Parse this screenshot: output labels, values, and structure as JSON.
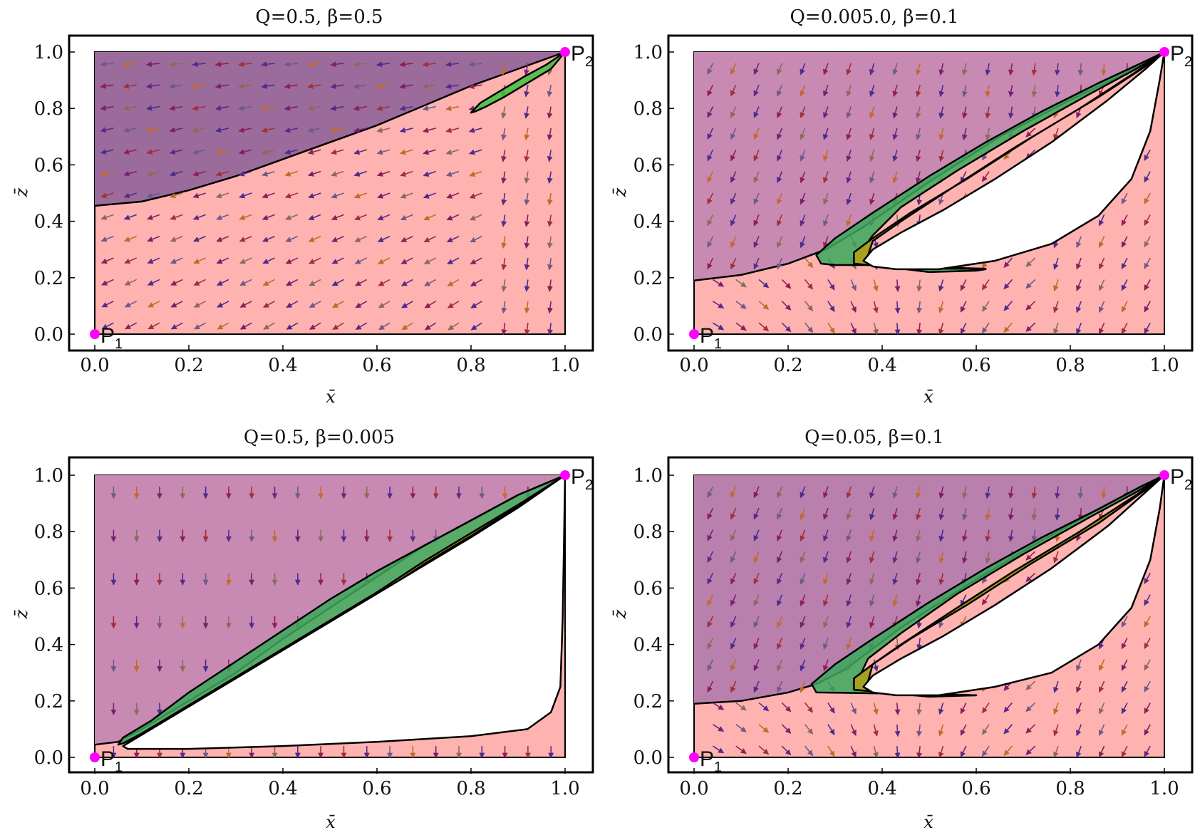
{
  "chart_data": [
    {
      "type": "streamplot",
      "title": "Q=0.5, β=0.5",
      "xlabel": "x̄",
      "ylabel": "z̄",
      "xlim": [
        0,
        1
      ],
      "ylim": [
        0,
        1
      ],
      "xticks": [
        "0.0",
        "0.2",
        "0.4",
        "0.6",
        "0.8",
        "1.0"
      ],
      "yticks": [
        "0.0",
        "0.2",
        "0.4",
        "0.6",
        "0.8",
        "1.0"
      ],
      "points": [
        {
          "label": "P",
          "sub": "1",
          "x": 0,
          "y": 0
        },
        {
          "label": "P",
          "sub": "2",
          "x": 1,
          "y": 1
        }
      ],
      "boundary": [
        [
          0,
          0.455
        ],
        [
          0.1,
          0.47
        ],
        [
          0.2,
          0.51
        ],
        [
          0.3,
          0.56
        ],
        [
          0.4,
          0.62
        ],
        [
          0.5,
          0.68
        ],
        [
          0.6,
          0.74
        ],
        [
          0.7,
          0.81
        ],
        [
          0.8,
          0.88
        ],
        [
          0.9,
          0.94
        ],
        [
          1.0,
          1.0
        ]
      ],
      "regions": {
        "white": [],
        "yellow": [],
        "green": [
          [
            0.8,
            0.785
          ],
          [
            0.82,
            0.82
          ],
          [
            0.86,
            0.86
          ],
          [
            0.91,
            0.91
          ],
          [
            0.96,
            0.955
          ],
          [
            1.0,
            1.0
          ],
          [
            0.97,
            0.94
          ],
          [
            0.92,
            0.89
          ],
          [
            0.87,
            0.84
          ],
          [
            0.83,
            0.805
          ],
          [
            0.81,
            0.79
          ]
        ]
      },
      "flow": "radial",
      "flow_arrows": "leftward",
      "colors": {
        "upper": "#9b6b9b",
        "lower": "#ffb3b0",
        "green": "#3ec23e",
        "point": "#ff00ff"
      }
    },
    {
      "type": "streamplot",
      "title": "Q=0.005.0, β=0.1",
      "xlabel": "x̄",
      "ylabel": "z̄",
      "xlim": [
        0,
        1
      ],
      "ylim": [
        0,
        1
      ],
      "xticks": [
        "0.0",
        "0.2",
        "0.4",
        "0.6",
        "0.8",
        "1.0"
      ],
      "yticks": [
        "0.0",
        "0.2",
        "0.4",
        "0.6",
        "0.8",
        "1.0"
      ],
      "points": [
        {
          "label": "P",
          "sub": "1",
          "x": 0,
          "y": 0
        },
        {
          "label": "P",
          "sub": "2",
          "x": 1,
          "y": 1
        }
      ],
      "boundary": [
        [
          0,
          0.19
        ],
        [
          0.1,
          0.21
        ],
        [
          0.2,
          0.25
        ],
        [
          0.28,
          0.3
        ],
        [
          0.36,
          0.38
        ],
        [
          0.5,
          0.54
        ],
        [
          0.65,
          0.7
        ],
        [
          0.8,
          0.83
        ],
        [
          0.9,
          0.91
        ],
        [
          1.0,
          1.0
        ]
      ],
      "regions": {
        "green": [
          [
            0.27,
            0.25
          ],
          [
            0.26,
            0.28
          ],
          [
            0.3,
            0.34
          ],
          [
            0.38,
            0.43
          ],
          [
            0.5,
            0.56
          ],
          [
            0.62,
            0.68
          ],
          [
            0.74,
            0.79
          ],
          [
            0.86,
            0.89
          ],
          [
            0.95,
            0.96
          ],
          [
            1.0,
            1.0
          ],
          [
            0.94,
            0.94
          ],
          [
            0.84,
            0.85
          ],
          [
            0.7,
            0.72
          ],
          [
            0.56,
            0.58
          ],
          [
            0.44,
            0.45
          ],
          [
            0.38,
            0.35
          ],
          [
            0.35,
            0.28
          ],
          [
            0.4,
            0.24
          ],
          [
            0.5,
            0.22
          ],
          [
            0.6,
            0.225
          ],
          [
            0.62,
            0.23
          ],
          [
            0.5,
            0.235
          ],
          [
            0.4,
            0.245
          ],
          [
            0.3,
            0.245
          ]
        ],
        "yellow": [
          [
            0.34,
            0.25
          ],
          [
            0.34,
            0.29
          ],
          [
            0.38,
            0.34
          ],
          [
            0.46,
            0.43
          ],
          [
            0.58,
            0.55
          ],
          [
            0.72,
            0.7
          ],
          [
            0.86,
            0.84
          ],
          [
            0.97,
            0.96
          ],
          [
            1.0,
            1.0
          ],
          [
            0.94,
            0.93
          ],
          [
            0.82,
            0.8
          ],
          [
            0.68,
            0.66
          ],
          [
            0.55,
            0.52
          ],
          [
            0.44,
            0.4
          ],
          [
            0.38,
            0.33
          ],
          [
            0.37,
            0.28
          ],
          [
            0.42,
            0.245
          ],
          [
            0.52,
            0.232
          ],
          [
            0.62,
            0.232
          ],
          [
            0.5,
            0.237
          ],
          [
            0.4,
            0.24
          ]
        ],
        "white": [
          [
            0.36,
            0.26
          ],
          [
            0.38,
            0.3
          ],
          [
            0.44,
            0.36
          ],
          [
            0.53,
            0.44
          ],
          [
            0.64,
            0.55
          ],
          [
            0.76,
            0.68
          ],
          [
            0.88,
            0.83
          ],
          [
            0.96,
            0.94
          ],
          [
            1.0,
            1.0
          ],
          [
            0.99,
            0.9
          ],
          [
            0.97,
            0.72
          ],
          [
            0.93,
            0.55
          ],
          [
            0.86,
            0.42
          ],
          [
            0.76,
            0.32
          ],
          [
            0.64,
            0.26
          ],
          [
            0.52,
            0.23
          ],
          [
            0.43,
            0.23
          ],
          [
            0.38,
            0.24
          ]
        ]
      },
      "flow": "down-left",
      "flow_arrows": "downward",
      "colors": {
        "upper": "#c88ab3",
        "lower": "#ffb3b0",
        "green": "#3aa85a",
        "yellow": "#a8a020",
        "point": "#ff00ff"
      }
    },
    {
      "type": "streamplot",
      "title": "Q=0.5, β=0.005",
      "xlabel": "x̄",
      "ylabel": "z̄",
      "xlim": [
        0,
        1
      ],
      "ylim": [
        0,
        1
      ],
      "xticks": [
        "0.0",
        "0.2",
        "0.4",
        "0.6",
        "0.8",
        "1.0"
      ],
      "yticks": [
        "0.0",
        "0.2",
        "0.4",
        "0.6",
        "0.8",
        "1.0"
      ],
      "points": [
        {
          "label": "P",
          "sub": "1",
          "x": 0,
          "y": 0
        },
        {
          "label": "P",
          "sub": "2",
          "x": 1,
          "y": 1
        }
      ],
      "boundary": [
        [
          0,
          0.045
        ],
        [
          0.05,
          0.055
        ],
        [
          0.1,
          0.1
        ],
        [
          0.2,
          0.2
        ],
        [
          0.3,
          0.3
        ],
        [
          0.4,
          0.42
        ],
        [
          0.5,
          0.53
        ],
        [
          0.6,
          0.64
        ],
        [
          0.7,
          0.75
        ],
        [
          0.8,
          0.84
        ],
        [
          0.9,
          0.93
        ],
        [
          1.0,
          1.0
        ]
      ],
      "regions": {
        "green": [
          [
            0.05,
            0.045
          ],
          [
            0.06,
            0.07
          ],
          [
            0.12,
            0.13
          ],
          [
            0.2,
            0.23
          ],
          [
            0.3,
            0.34
          ],
          [
            0.4,
            0.45
          ],
          [
            0.5,
            0.56
          ],
          [
            0.6,
            0.66
          ],
          [
            0.7,
            0.75
          ],
          [
            0.8,
            0.84
          ],
          [
            0.9,
            0.93
          ],
          [
            1.0,
            1.0
          ],
          [
            0.9,
            0.89
          ],
          [
            0.8,
            0.79
          ],
          [
            0.7,
            0.69
          ],
          [
            0.6,
            0.58
          ],
          [
            0.5,
            0.48
          ],
          [
            0.4,
            0.38
          ],
          [
            0.3,
            0.28
          ],
          [
            0.2,
            0.18
          ],
          [
            0.1,
            0.08
          ],
          [
            0.06,
            0.05
          ]
        ],
        "yellow": [
          [
            0.06,
            0.05
          ],
          [
            0.1,
            0.085
          ],
          [
            0.2,
            0.185
          ],
          [
            0.3,
            0.285
          ],
          [
            0.4,
            0.385
          ],
          [
            0.5,
            0.485
          ],
          [
            0.6,
            0.585
          ],
          [
            0.7,
            0.695
          ],
          [
            0.8,
            0.795
          ],
          [
            0.9,
            0.895
          ],
          [
            1.0,
            1.0
          ],
          [
            0.9,
            0.89
          ],
          [
            0.8,
            0.785
          ],
          [
            0.7,
            0.685
          ],
          [
            0.6,
            0.575
          ],
          [
            0.5,
            0.475
          ],
          [
            0.4,
            0.375
          ],
          [
            0.3,
            0.275
          ],
          [
            0.2,
            0.175
          ],
          [
            0.1,
            0.075
          ]
        ],
        "white": [
          [
            0.06,
            0.04
          ],
          [
            0.1,
            0.08
          ],
          [
            0.2,
            0.18
          ],
          [
            0.3,
            0.28
          ],
          [
            0.4,
            0.38
          ],
          [
            0.5,
            0.48
          ],
          [
            0.6,
            0.58
          ],
          [
            0.7,
            0.68
          ],
          [
            0.8,
            0.78
          ],
          [
            0.9,
            0.885
          ],
          [
            1.0,
            1.0
          ],
          [
            0.995,
            0.5
          ],
          [
            0.99,
            0.25
          ],
          [
            0.97,
            0.16
          ],
          [
            0.92,
            0.1
          ],
          [
            0.8,
            0.075
          ],
          [
            0.6,
            0.055
          ],
          [
            0.4,
            0.04
          ],
          [
            0.2,
            0.03
          ],
          [
            0.1,
            0.03
          ],
          [
            0.07,
            0.03
          ]
        ]
      },
      "flow": "down",
      "flow_arrows": "downward",
      "colors": {
        "upper": "#c88ab3",
        "lower": "#ffb3b0",
        "green": "#3aa85a",
        "yellow": "#a8a020",
        "point": "#ff00ff"
      }
    },
    {
      "type": "streamplot",
      "title": "Q=0.05, β=0.1",
      "xlabel": "x̄",
      "ylabel": "z̄",
      "xlim": [
        0,
        1
      ],
      "ylim": [
        0,
        1
      ],
      "xticks": [
        "0.0",
        "0.2",
        "0.4",
        "0.6",
        "0.8",
        "1.0"
      ],
      "yticks": [
        "0.0",
        "0.2",
        "0.4",
        "0.6",
        "0.8",
        "1.0"
      ],
      "points": [
        {
          "label": "P",
          "sub": "1",
          "x": 0,
          "y": 0
        },
        {
          "label": "P",
          "sub": "2",
          "x": 1,
          "y": 1
        }
      ],
      "boundary": [
        [
          0,
          0.19
        ],
        [
          0.1,
          0.2
        ],
        [
          0.2,
          0.23
        ],
        [
          0.26,
          0.26
        ],
        [
          0.32,
          0.31
        ],
        [
          0.44,
          0.46
        ],
        [
          0.58,
          0.61
        ],
        [
          0.72,
          0.75
        ],
        [
          0.86,
          0.88
        ],
        [
          1.0,
          1.0
        ]
      ],
      "regions": {
        "green": [
          [
            0.26,
            0.23
          ],
          [
            0.25,
            0.26
          ],
          [
            0.3,
            0.33
          ],
          [
            0.38,
            0.42
          ],
          [
            0.5,
            0.55
          ],
          [
            0.62,
            0.67
          ],
          [
            0.74,
            0.78
          ],
          [
            0.86,
            0.88
          ],
          [
            0.95,
            0.96
          ],
          [
            1.0,
            1.0
          ],
          [
            0.94,
            0.94
          ],
          [
            0.84,
            0.85
          ],
          [
            0.7,
            0.72
          ],
          [
            0.56,
            0.58
          ],
          [
            0.44,
            0.44
          ],
          [
            0.37,
            0.35
          ],
          [
            0.35,
            0.28
          ],
          [
            0.4,
            0.23
          ],
          [
            0.5,
            0.215
          ],
          [
            0.6,
            0.22
          ],
          [
            0.45,
            0.225
          ],
          [
            0.35,
            0.228
          ]
        ],
        "yellow": [
          [
            0.34,
            0.24
          ],
          [
            0.34,
            0.28
          ],
          [
            0.38,
            0.33
          ],
          [
            0.46,
            0.42
          ],
          [
            0.58,
            0.54
          ],
          [
            0.72,
            0.69
          ],
          [
            0.86,
            0.83
          ],
          [
            0.97,
            0.96
          ],
          [
            1.0,
            1.0
          ],
          [
            0.94,
            0.93
          ],
          [
            0.82,
            0.8
          ],
          [
            0.68,
            0.66
          ],
          [
            0.55,
            0.52
          ],
          [
            0.44,
            0.4
          ],
          [
            0.38,
            0.33
          ],
          [
            0.37,
            0.27
          ],
          [
            0.42,
            0.23
          ],
          [
            0.52,
            0.218
          ],
          [
            0.6,
            0.22
          ],
          [
            0.5,
            0.225
          ],
          [
            0.4,
            0.23
          ]
        ],
        "white": [
          [
            0.36,
            0.25
          ],
          [
            0.38,
            0.29
          ],
          [
            0.44,
            0.35
          ],
          [
            0.53,
            0.43
          ],
          [
            0.64,
            0.54
          ],
          [
            0.76,
            0.67
          ],
          [
            0.88,
            0.82
          ],
          [
            0.96,
            0.94
          ],
          [
            1.0,
            1.0
          ],
          [
            0.99,
            0.88
          ],
          [
            0.97,
            0.7
          ],
          [
            0.93,
            0.53
          ],
          [
            0.86,
            0.4
          ],
          [
            0.76,
            0.3
          ],
          [
            0.64,
            0.25
          ],
          [
            0.52,
            0.22
          ],
          [
            0.43,
            0.22
          ],
          [
            0.38,
            0.23
          ]
        ]
      },
      "flow": "down-left",
      "flow_arrows": "downward",
      "colors": {
        "upper": "#b980ae",
        "lower": "#ffb3b0",
        "green": "#3aa85a",
        "yellow": "#a8a020",
        "point": "#ff00ff"
      }
    }
  ]
}
